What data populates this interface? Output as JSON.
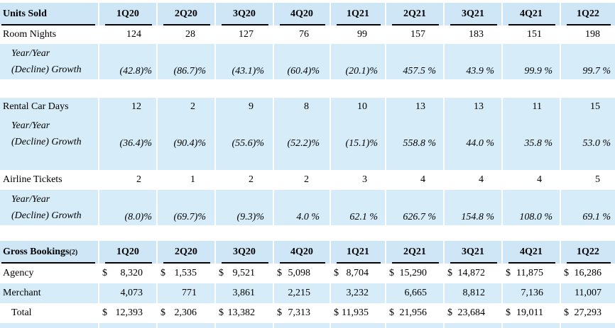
{
  "quarters": [
    "1Q20",
    "2Q20",
    "3Q20",
    "4Q20",
    "1Q21",
    "2Q21",
    "3Q21",
    "4Q21",
    "1Q22"
  ],
  "units_sold": {
    "header": "Units Sold",
    "room_nights": {
      "label": "Room Nights",
      "values": [
        "124",
        "28",
        "127",
        "76",
        "99",
        "157",
        "183",
        "151",
        "198"
      ],
      "growth_label_1": "Year/Year",
      "growth_label_2": "(Decline) Growth",
      "growth": [
        "(42.8)%",
        "(86.7)%",
        "(43.1)%",
        "(60.4)%",
        "(20.1)%",
        "457.5 %",
        "43.9 %",
        "99.9 %",
        "99.7 %"
      ]
    },
    "rental_car_days": {
      "label": "Rental Car Days",
      "values": [
        "12",
        "2",
        "9",
        "8",
        "10",
        "13",
        "13",
        "11",
        "15"
      ],
      "growth_label_1": "Year/Year",
      "growth_label_2": "(Decline) Growth",
      "growth": [
        "(36.4)%",
        "(90.4)%",
        "(55.6)%",
        "(52.2)%",
        "(15.1)%",
        "558.8 %",
        "44.0 %",
        "35.8 %",
        "53.0 %"
      ]
    },
    "airline_tickets": {
      "label": "Airline Tickets",
      "values": [
        "2",
        "1",
        "2",
        "2",
        "3",
        "4",
        "4",
        "4",
        "5"
      ],
      "growth_label_1": "Year/Year",
      "growth_label_2": "(Decline) Growth",
      "growth": [
        "(8.0)%",
        "(69.7)%",
        "(9.3)%",
        "4.0 %",
        "62.1 %",
        "626.7 %",
        "154.8 %",
        "108.0 %",
        "69.1 %"
      ]
    }
  },
  "gross_bookings": {
    "header": "Gross Bookings",
    "footnote": "(2)",
    "currency": "$",
    "agency": {
      "label": "Agency",
      "values": [
        "8,320",
        "1,535",
        "9,521",
        "5,098",
        "8,704",
        "15,290",
        "14,872",
        "11,875",
        "16,286"
      ]
    },
    "merchant": {
      "label": "Merchant",
      "values": [
        "4,073",
        "771",
        "3,861",
        "2,215",
        "3,232",
        "6,665",
        "8,812",
        "7,136",
        "11,007"
      ]
    },
    "total": {
      "label": "Total",
      "values": [
        "12,393",
        "2,306",
        "13,382",
        "7,313",
        "11,935",
        "21,956",
        "23,684",
        "19,011",
        "27,293"
      ]
    }
  }
}
